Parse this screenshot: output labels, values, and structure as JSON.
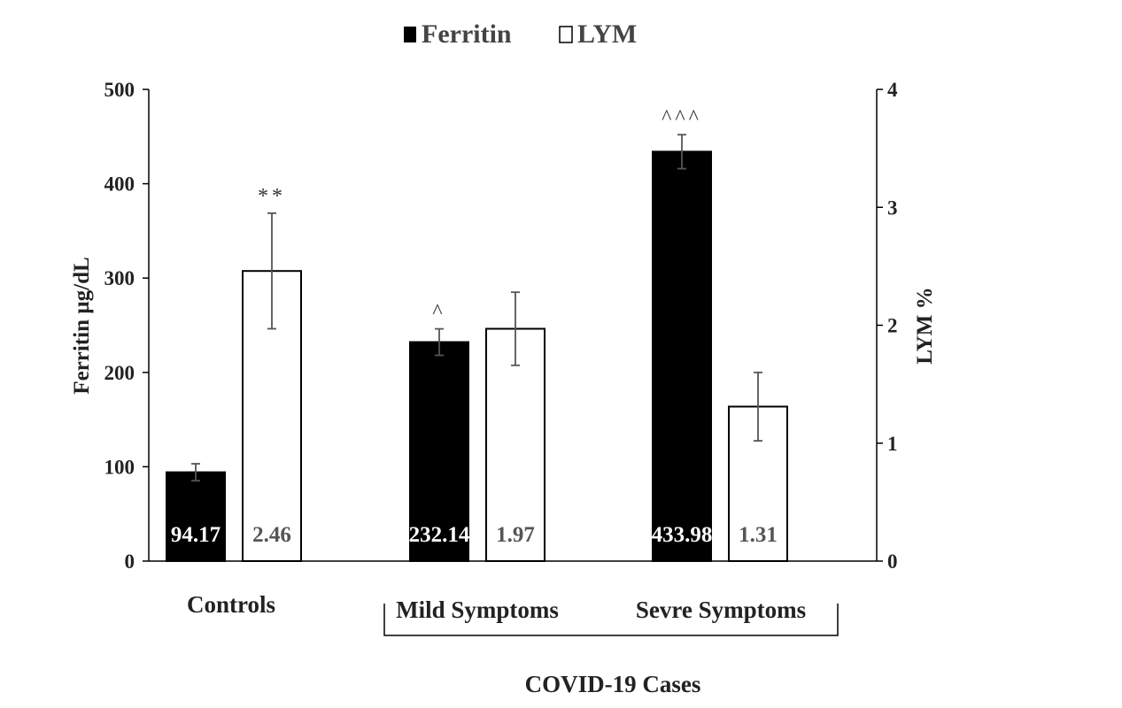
{
  "chart_data": {
    "type": "bar",
    "categories": [
      "Controls",
      "Mild Symptoms",
      "Sevre Symptoms"
    ],
    "group_label": "COVID-19 Cases",
    "legend": {
      "placement": "top-center",
      "entries": [
        {
          "name": "Ferritin",
          "color": "#000000"
        },
        {
          "name": "LYM",
          "color": "#ffffff"
        }
      ]
    },
    "ylabel": "Ferritin µg/dL",
    "y2label": "LYM %",
    "ylim": [
      0,
      500
    ],
    "yticks": [
      "0",
      "100",
      "200",
      "300",
      "400",
      "500"
    ],
    "y2lim": [
      0,
      4
    ],
    "y2ticks": [
      "0",
      "1",
      "2",
      "3",
      "4"
    ],
    "series": [
      {
        "name": "Ferritin",
        "axis": "left",
        "color": "#000000",
        "values": [
          94.17,
          232.14,
          433.98
        ],
        "value_labels": [
          "94.17",
          "232.14",
          "433.98"
        ],
        "error": [
          9,
          14,
          18
        ],
        "annotations": [
          "",
          "^",
          "^^^"
        ]
      },
      {
        "name": "LYM",
        "axis": "right",
        "color": "#ffffff",
        "values": [
          2.46,
          1.97,
          1.31
        ],
        "value_labels": [
          "2.46",
          "1.97",
          "1.31"
        ],
        "error": [
          0.49,
          0.31,
          0.29
        ],
        "annotations": [
          "**",
          "",
          ""
        ]
      }
    ],
    "grid": false
  }
}
